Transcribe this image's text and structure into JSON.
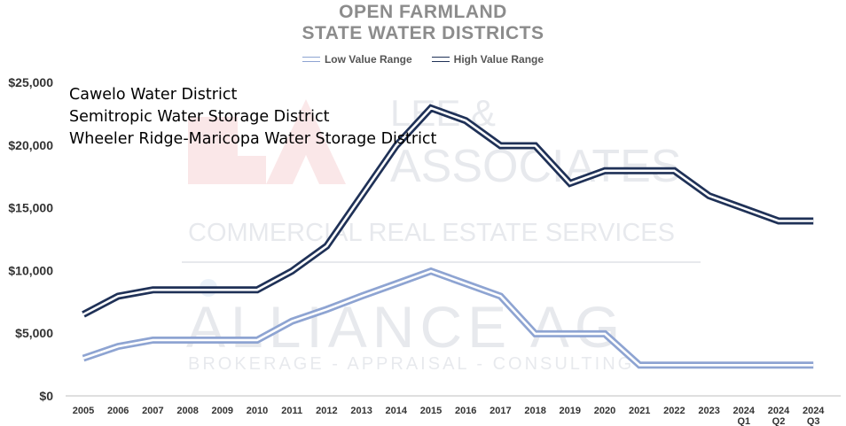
{
  "chart_data": {
    "type": "line",
    "title": [
      "OPEN FARMLAND",
      "STATE WATER DISTRICTS"
    ],
    "annotations": [
      "Cawelo Water District",
      "Semitropic Water Storage District",
      "Wheeler Ridge-Maricopa Water Storage District"
    ],
    "categories": [
      "2005",
      "2006",
      "2007",
      "2008",
      "2009",
      "2010",
      "2011",
      "2012",
      "2013",
      "2014",
      "2015",
      "2016",
      "2017",
      "2018",
      "2019",
      "2020",
      "2021",
      "2022",
      "2023",
      "2024 Q1",
      "2024 Q2",
      "2024 Q3"
    ],
    "category_labels": [
      [
        "2005"
      ],
      [
        "2006"
      ],
      [
        "2007"
      ],
      [
        "2008"
      ],
      [
        "2009"
      ],
      [
        "2010"
      ],
      [
        "2011"
      ],
      [
        "2012"
      ],
      [
        "2013"
      ],
      [
        "2014"
      ],
      [
        "2015"
      ],
      [
        "2016"
      ],
      [
        "2017"
      ],
      [
        "2018"
      ],
      [
        "2019"
      ],
      [
        "2020"
      ],
      [
        "2021"
      ],
      [
        "2022"
      ],
      [
        "2023"
      ],
      [
        "2024",
        "Q1"
      ],
      [
        "2024",
        "Q2"
      ],
      [
        "2024",
        "Q3"
      ]
    ],
    "series": [
      {
        "name": "Low Value Range",
        "color": "#8ea4d2",
        "values": [
          3000,
          3950,
          4450,
          4450,
          4450,
          4450,
          5950,
          6900,
          7950,
          8950,
          9950,
          8950,
          7950,
          4950,
          4950,
          4950,
          2450,
          2450,
          2450,
          2450,
          2450,
          2450
        ]
      },
      {
        "name": "High Value Range",
        "color": "#1f3157",
        "values": [
          6500,
          7950,
          8450,
          8450,
          8450,
          8450,
          9950,
          11950,
          15950,
          19950,
          22950,
          21950,
          19950,
          19950,
          16950,
          17950,
          17950,
          17950,
          15950,
          14950,
          13950,
          13950
        ]
      }
    ],
    "y_ticks": [
      "$0",
      "$5,000",
      "$10,000",
      "$15,000",
      "$20,000",
      "$25,000"
    ],
    "y_tick_values": [
      0,
      5000,
      10000,
      15000,
      20000,
      25000
    ],
    "ylim": [
      0,
      25000
    ],
    "grid": false,
    "legend_position": "top"
  },
  "watermark": {
    "brand1": "LEE &",
    "brand2": "ASSOCIATES",
    "tagline": "COMMERCIAL REAL ESTATE SERVICES",
    "brand3": "ALLIANCE AG",
    "tagline2": "BROKERAGE - APPRAISAL - CONSULTING"
  },
  "colors": {
    "title": "#8c8c8c",
    "axis": "#bfbfbf",
    "low": "#8ea4d2",
    "high": "#1f3157"
  }
}
